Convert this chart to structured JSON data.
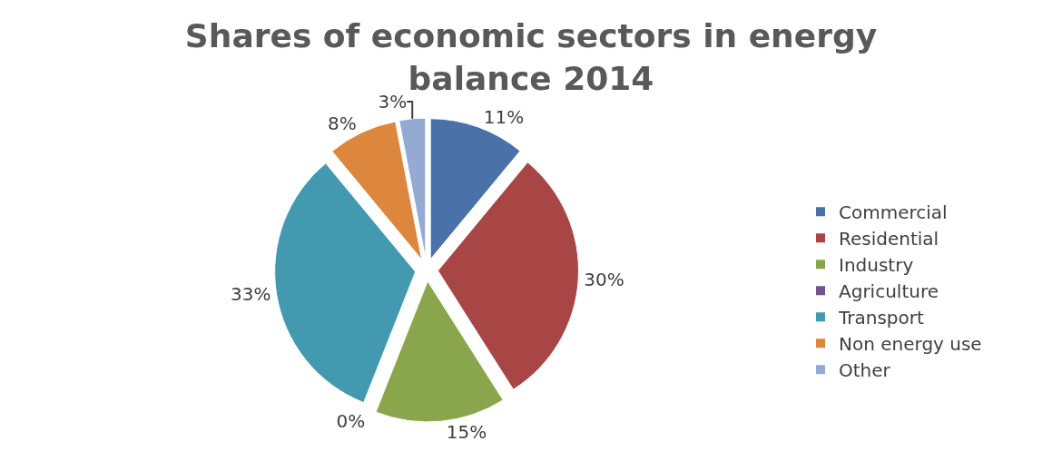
{
  "chart_data": {
    "type": "pie",
    "title": "Shares of economic sectors in energy\nbalance 2014",
    "categories": [
      "Commercial",
      "Residential",
      "Industry",
      "Agriculture",
      "Transport",
      "Non energy use",
      "Other"
    ],
    "values": [
      11,
      30,
      15,
      0,
      33,
      8,
      3
    ],
    "colors": [
      "#4a72a8",
      "#a84646",
      "#8aa64c",
      "#6f558c",
      "#4299b0",
      "#dc863e",
      "#93aad3"
    ],
    "value_labels": [
      "11%",
      "30%",
      "15%",
      "0%",
      "33%",
      "8%",
      "3%"
    ],
    "legend": "right"
  }
}
